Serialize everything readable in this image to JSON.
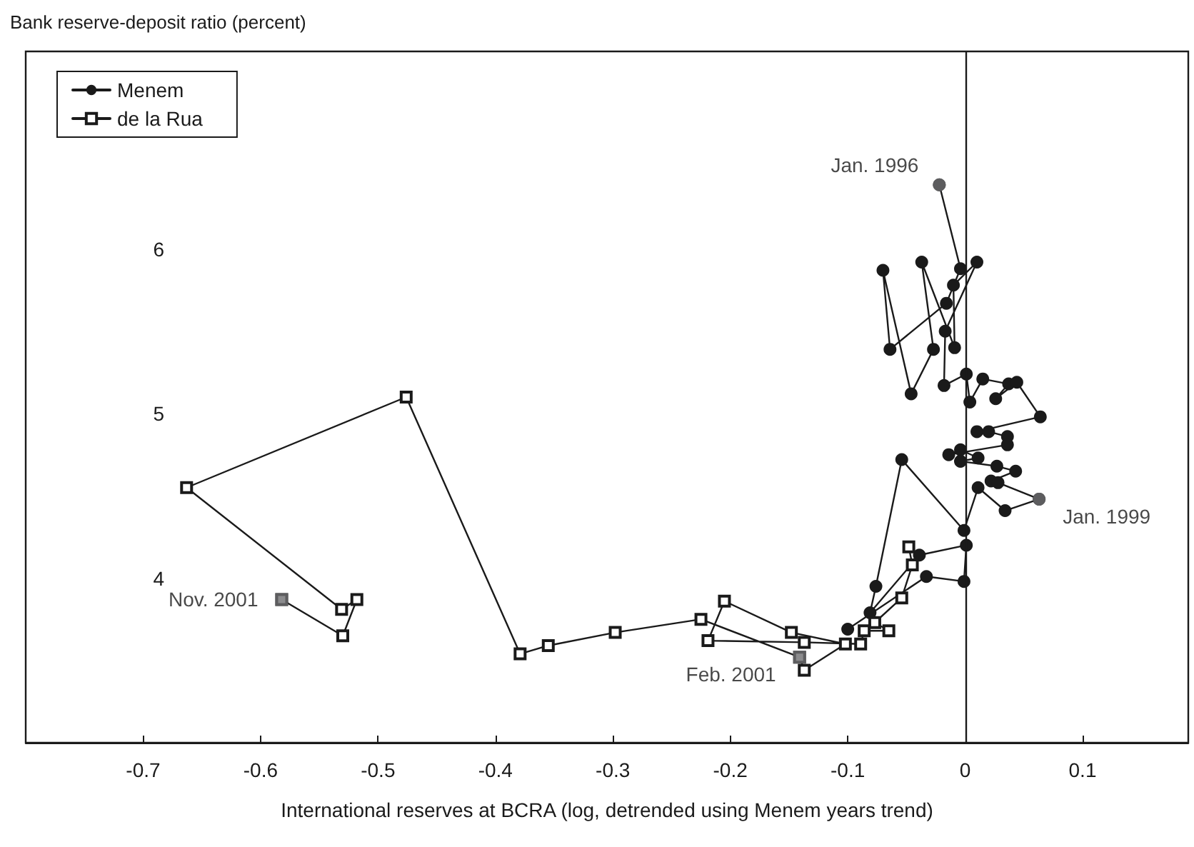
{
  "chart_data": {
    "type": "line",
    "ylabel": "Bank reserve-deposit ratio (percent)",
    "xlabel": "International reserves at BCRA (log, detrended using Menem years trend)",
    "xlim": [
      -0.8,
      0.19
    ],
    "xticks": [
      -0.7,
      -0.6,
      -0.5,
      -0.4,
      -0.3,
      -0.2,
      -0.1,
      0,
      0.1
    ],
    "ylim": [
      3,
      7.2
    ],
    "yticks": [
      4,
      5,
      6
    ],
    "grid": false,
    "legend": "top left",
    "series": [
      {
        "name": "Menem",
        "color": "#1a1a1a",
        "marker": "circle",
        "x": [
          -0.022,
          -0.004,
          -0.016,
          -0.064,
          -0.07,
          -0.046,
          -0.027,
          -0.037,
          -0.009,
          -0.01,
          0.01,
          -0.017,
          -0.018,
          0.001,
          0.004,
          0.015,
          0.037,
          0.026,
          0.044,
          0.064,
          0.01,
          0.02,
          0.036,
          0.036,
          -0.014,
          -0.004,
          0.011,
          -0.004,
          0.027,
          0.043,
          0.022,
          0.028,
          0.063,
          0.034,
          0.011,
          -0.001,
          -0.054,
          -0.076,
          -0.081,
          -0.039,
          0.001,
          -0.001,
          -0.033,
          -0.1
        ],
        "values": [
          6.39,
          5.88,
          5.67,
          5.39,
          5.87,
          5.12,
          5.39,
          5.92,
          5.4,
          5.78,
          5.92,
          5.5,
          5.17,
          5.24,
          5.07,
          5.21,
          5.18,
          5.09,
          5.19,
          4.98,
          4.89,
          4.89,
          4.86,
          4.81,
          4.75,
          4.78,
          4.73,
          4.71,
          4.68,
          4.65,
          4.59,
          4.58,
          4.48,
          4.41,
          4.55,
          4.29,
          4.72,
          3.95,
          3.79,
          4.14,
          4.2,
          3.98,
          4.01,
          3.69
        ]
      },
      {
        "name": "de la Rua",
        "color": "#1a1a1a",
        "marker": "square",
        "x": [
          -0.048,
          -0.045,
          -0.054,
          -0.077,
          -0.065,
          -0.086,
          -0.089,
          -0.137,
          -0.219,
          -0.205,
          -0.148,
          -0.102,
          -0.137,
          -0.141,
          -0.225,
          -0.298,
          -0.355,
          -0.379,
          -0.476,
          -0.663,
          -0.531,
          -0.518,
          -0.53,
          -0.582
        ],
        "values": [
          4.19,
          4.08,
          3.88,
          3.73,
          3.68,
          3.68,
          3.6,
          3.61,
          3.62,
          3.86,
          3.67,
          3.6,
          3.44,
          3.52,
          3.75,
          3.67,
          3.59,
          3.54,
          5.1,
          4.55,
          3.81,
          3.87,
          3.65,
          3.87
        ]
      }
    ],
    "ref_lines": [
      {
        "axis": "x",
        "value": 0,
        "color": "#1a1a1a",
        "line_style": "solid"
      }
    ],
    "annotations": [
      {
        "text": "Jan. 1996",
        "x": -0.022,
        "y": 6.39
      },
      {
        "text": "Jan. 1999",
        "x": 0.063,
        "y": 4.48
      },
      {
        "text": "Nov. 2001",
        "x": -0.582,
        "y": 3.87
      },
      {
        "text": "Feb. 2001",
        "x": -0.141,
        "y": 3.52
      }
    ]
  }
}
